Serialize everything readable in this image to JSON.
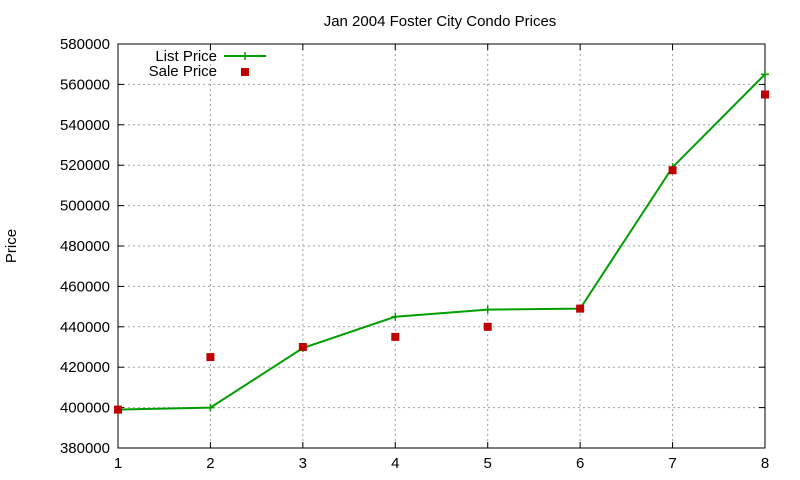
{
  "chart_data": {
    "type": "line",
    "title": "Jan 2004 Foster City Condo Prices",
    "xlabel": "",
    "ylabel": "Price",
    "x": [
      1,
      2,
      3,
      4,
      5,
      6,
      7,
      8
    ],
    "xlim": [
      1,
      8
    ],
    "ylim": [
      380000,
      580000
    ],
    "yticks": [
      380000,
      400000,
      420000,
      440000,
      460000,
      480000,
      500000,
      520000,
      540000,
      560000,
      580000
    ],
    "xticks": [
      1,
      2,
      3,
      4,
      5,
      6,
      7,
      8
    ],
    "grid": true,
    "legend_position": "top-left",
    "series": [
      {
        "name": "List Price",
        "style": "line-with-plus-markers",
        "color": "#009e00",
        "values": [
          399000,
          400000,
          429500,
          445000,
          448500,
          449000,
          519000,
          565000
        ]
      },
      {
        "name": "Sale Price",
        "style": "square-markers",
        "color": "#c00000",
        "values": [
          399000,
          425000,
          430000,
          435000,
          440000,
          449000,
          517500,
          555000
        ]
      }
    ]
  }
}
